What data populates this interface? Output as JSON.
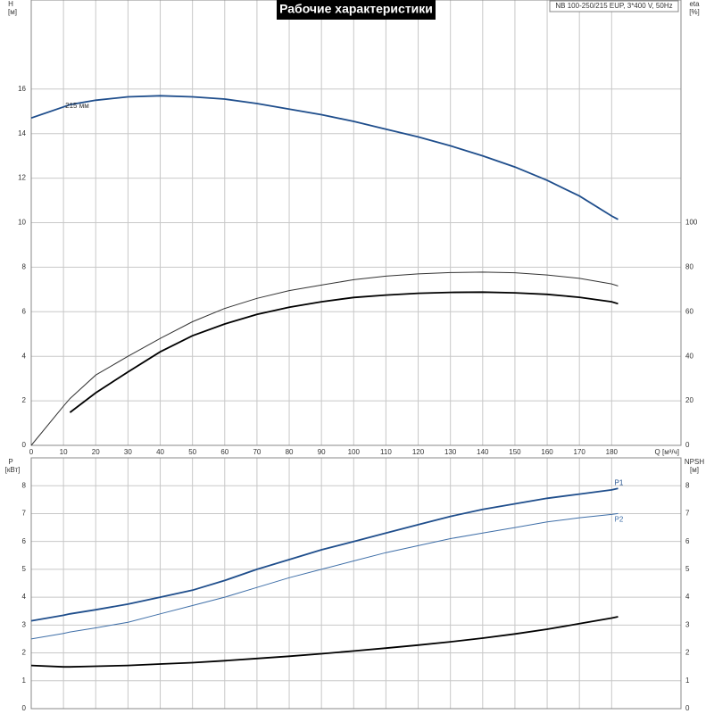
{
  "header": {
    "title": "Рабочие характеристики",
    "info": "NB 100-250/215 EUP, 3*400 V, 50Hz"
  },
  "chart_data": [
    {
      "type": "line",
      "ylabel": "H",
      "yunit": "[м]",
      "y2label": "eta",
      "y2unit": "[%]",
      "xlabel": "Q [м³/ч]",
      "annotation": "215 мм",
      "x": [
        0,
        10,
        12,
        20,
        30,
        40,
        50,
        60,
        70,
        80,
        90,
        100,
        110,
        120,
        130,
        140,
        150,
        160,
        170,
        180,
        182
      ],
      "xlim": [
        0,
        201.5
      ],
      "xticks": [
        0,
        10,
        20,
        30,
        40,
        50,
        60,
        70,
        80,
        90,
        100,
        110,
        120,
        130,
        140,
        150,
        160,
        170,
        180
      ],
      "ylim": [
        0,
        20
      ],
      "yticks": [
        0,
        2,
        4,
        6,
        8,
        10,
        12,
        14,
        16
      ],
      "y2lim": [
        0,
        200
      ],
      "y2ticks": [
        0,
        20,
        40,
        60,
        80,
        100
      ],
      "grid": true,
      "series": [
        {
          "color": "#1f4e8c",
          "weight": "thick",
          "values": [
            14.7,
            15.2,
            15.3,
            15.5,
            15.65,
            15.7,
            15.65,
            15.55,
            15.35,
            15.1,
            14.85,
            14.55,
            14.2,
            13.85,
            13.45,
            13.0,
            12.5,
            11.9,
            11.2,
            10.3,
            10.15
          ]
        },
        {
          "color": "#333333",
          "weight": "thin",
          "axis": "y2",
          "values": [
            0,
            17.6,
            21,
            31.6,
            40,
            48,
            55.5,
            61.5,
            66,
            69.5,
            72,
            74.4,
            76,
            77,
            77.6,
            77.8,
            77.5,
            76.5,
            75,
            72.5,
            71.6
          ]
        },
        {
          "color": "#000000",
          "weight": "thick",
          "axis": "y2",
          "values": [
            null,
            null,
            14.8,
            23.6,
            33,
            42,
            49.2,
            54.5,
            58.8,
            62,
            64.5,
            66.4,
            67.5,
            68.3,
            68.7,
            68.8,
            68.5,
            67.8,
            66.5,
            64.5,
            63.6
          ]
        }
      ]
    },
    {
      "type": "line",
      "ylabel": "P",
      "yunit": "[кВт]",
      "y2label": "NPSH",
      "y2unit": "[м]",
      "x": [
        0,
        10,
        12,
        20,
        30,
        40,
        50,
        60,
        70,
        80,
        90,
        100,
        110,
        120,
        130,
        140,
        150,
        160,
        170,
        180,
        182
      ],
      "xlim": [
        0,
        201.5
      ],
      "ylim": [
        0,
        9
      ],
      "yticks": [
        0,
        1,
        2,
        3,
        4,
        5,
        6,
        7,
        8
      ],
      "y2lim": [
        0,
        9
      ],
      "y2ticks": [
        0,
        1,
        2,
        3,
        4,
        5,
        6,
        7,
        8
      ],
      "grid": true,
      "series": [
        {
          "name": "P1",
          "color": "#1f4e8c",
          "weight": "thick",
          "values": [
            3.15,
            3.35,
            3.4,
            3.55,
            3.75,
            4.0,
            4.25,
            4.6,
            5.0,
            5.35,
            5.7,
            6.0,
            6.3,
            6.6,
            6.9,
            7.15,
            7.35,
            7.55,
            7.7,
            7.85,
            7.9
          ]
        },
        {
          "name": "P2",
          "color": "#3f6fa8",
          "weight": "thin",
          "values": [
            2.5,
            2.7,
            2.75,
            2.9,
            3.1,
            3.4,
            3.7,
            4.0,
            4.35,
            4.7,
            5.0,
            5.3,
            5.6,
            5.85,
            6.1,
            6.3,
            6.5,
            6.7,
            6.85,
            6.97,
            7.0
          ]
        },
        {
          "color": "#000000",
          "weight": "thick",
          "axis": "y2",
          "values": [
            1.55,
            1.5,
            1.5,
            1.52,
            1.55,
            1.6,
            1.65,
            1.72,
            1.8,
            1.88,
            1.97,
            2.07,
            2.17,
            2.28,
            2.4,
            2.53,
            2.68,
            2.85,
            3.05,
            3.25,
            3.3
          ]
        }
      ]
    }
  ]
}
